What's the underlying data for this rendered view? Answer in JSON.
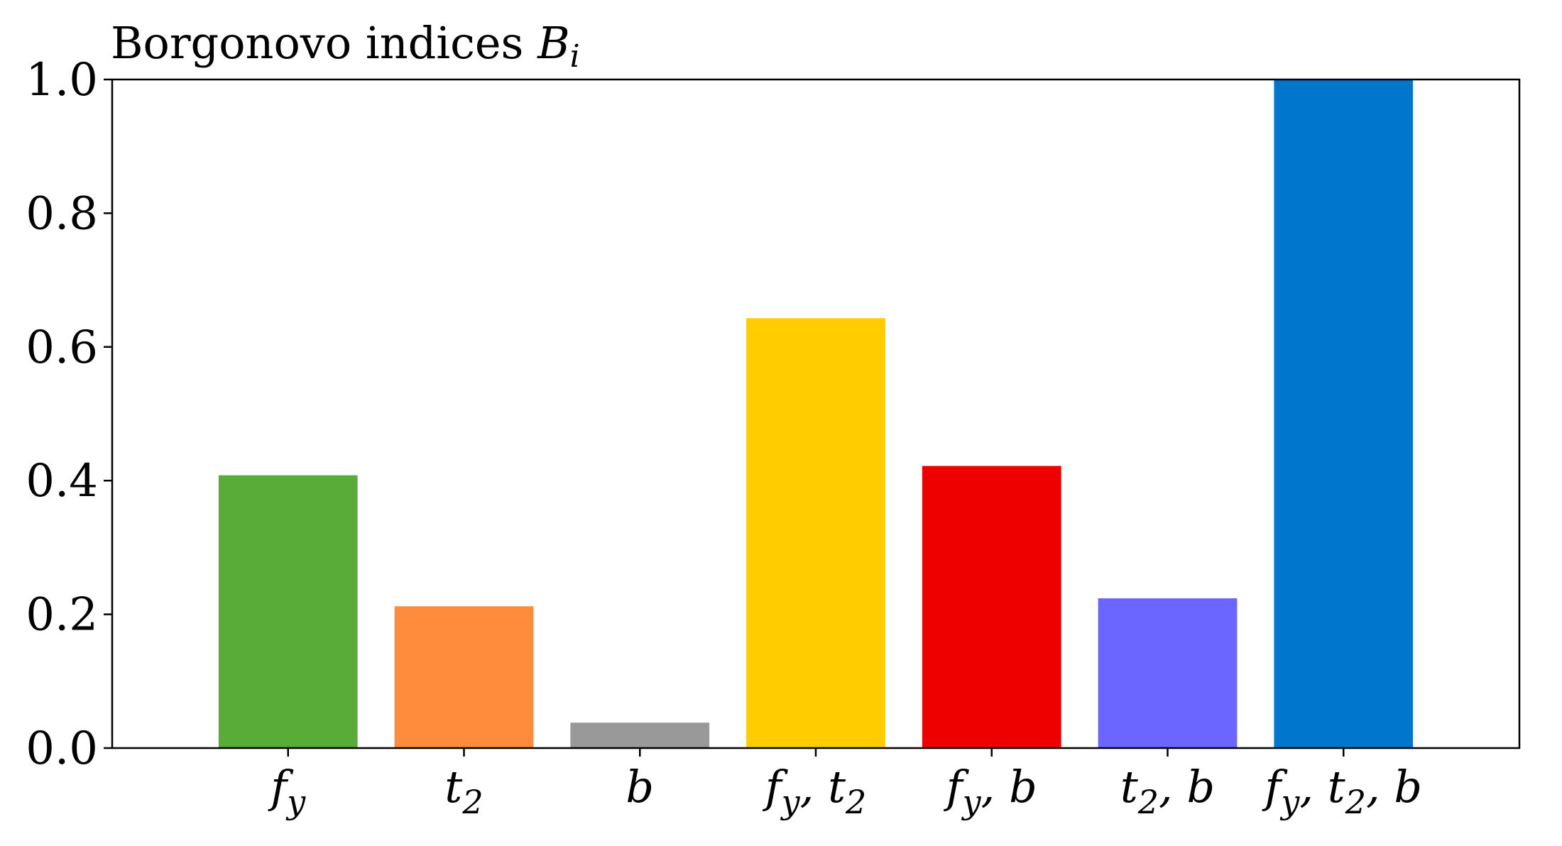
{
  "chart_data": {
    "type": "bar",
    "title": "Borgonovo indices",
    "title_math": "B",
    "title_math_sub": "i",
    "categories": [
      [
        {
          "t": "f"
        },
        {
          "t": "y",
          "sub": true
        }
      ],
      [
        {
          "t": "t"
        },
        {
          "t": "2",
          "sub": true
        }
      ],
      [
        {
          "t": "b"
        }
      ],
      [
        {
          "t": "f"
        },
        {
          "t": "y",
          "sub": true
        },
        {
          "t": ", t"
        },
        {
          "t": "2",
          "sub": true
        }
      ],
      [
        {
          "t": "f"
        },
        {
          "t": "y",
          "sub": true
        },
        {
          "t": ", b"
        }
      ],
      [
        {
          "t": "t"
        },
        {
          "t": "2",
          "sub": true
        },
        {
          "t": ", b"
        }
      ],
      [
        {
          "t": "f"
        },
        {
          "t": "y",
          "sub": true
        },
        {
          "t": ", t"
        },
        {
          "t": "2",
          "sub": true
        },
        {
          "t": ", b"
        }
      ]
    ],
    "values": [
      0.408,
      0.212,
      0.038,
      0.643,
      0.422,
      0.224,
      1.0
    ],
    "colors": [
      "#5aac39",
      "#ff8c3c",
      "#999999",
      "#ffcc00",
      "#ee0000",
      "#6a66ff",
      "#0077cc"
    ],
    "ylim": [
      0,
      1.0
    ],
    "yticks": [
      "0.0",
      "0.2",
      "0.4",
      "0.6",
      "0.8",
      "1.0"
    ],
    "xlabel": "",
    "ylabel": "",
    "grid": false
  }
}
